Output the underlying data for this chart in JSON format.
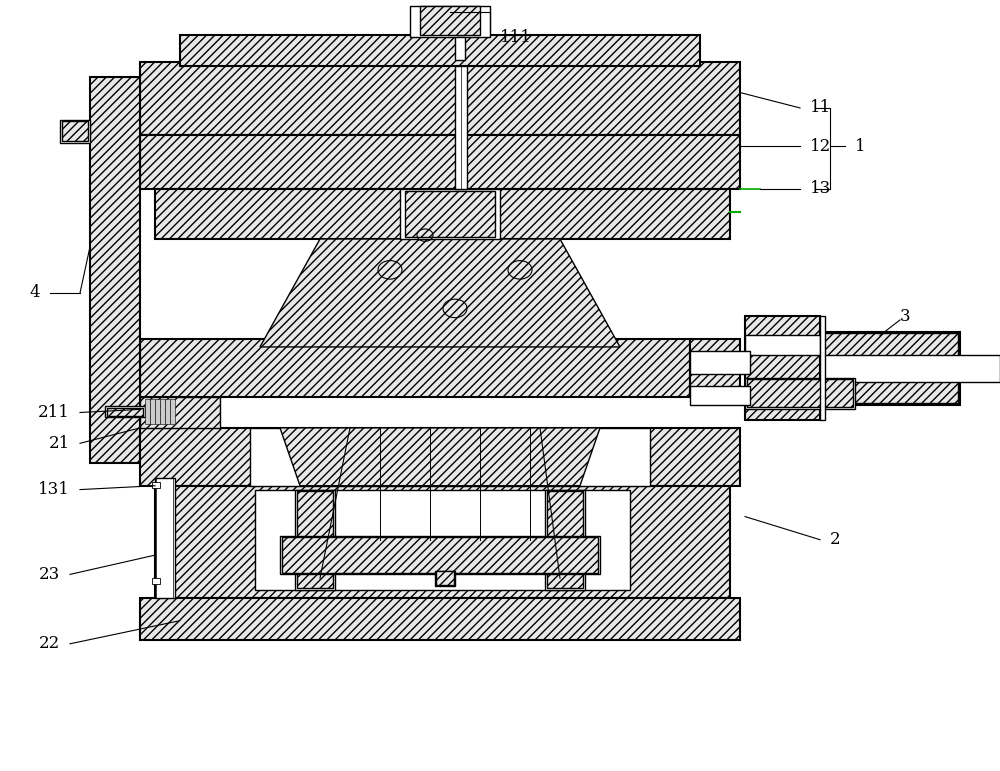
{
  "bg_color": "#ffffff",
  "line_color": "#000000",
  "hatch_color": "#000000",
  "hatch_pattern": "////",
  "green_line": "#00aa00",
  "label_color": "#000000",
  "fig_width": 10.0,
  "fig_height": 7.71
}
